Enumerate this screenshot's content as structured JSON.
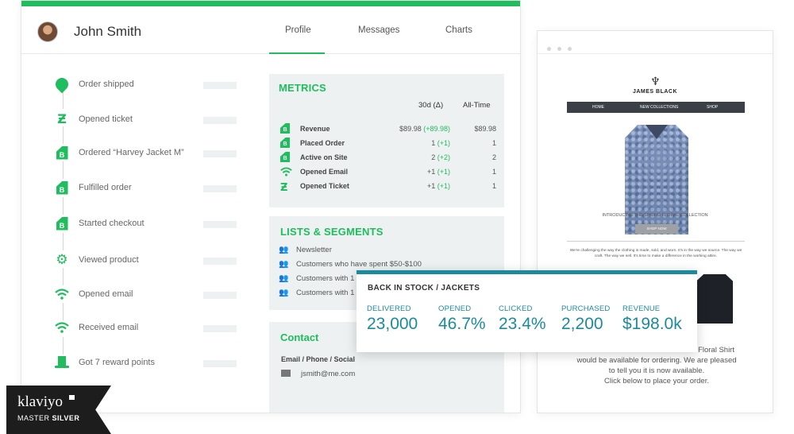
{
  "profile": {
    "name": "John Smith",
    "tabs": [
      {
        "label": "Profile"
      },
      {
        "label": "Messages"
      },
      {
        "label": "Charts"
      }
    ],
    "active_tab": "Profile"
  },
  "timeline": [
    {
      "icon": "location-pin-icon",
      "label": "Order shipped"
    },
    {
      "icon": "zendesk-icon",
      "label": "Opened ticket"
    },
    {
      "icon": "bigcommerce-icon",
      "label": "Ordered “Harvey Jacket M”"
    },
    {
      "icon": "bigcommerce-icon",
      "label": "Fulfilled order"
    },
    {
      "icon": "bigcommerce-icon",
      "label": "Started checkout"
    },
    {
      "icon": "gear-icon",
      "label": "Viewed product"
    },
    {
      "icon": "wifi-icon",
      "label": "Opened email"
    },
    {
      "icon": "wifi-icon",
      "label": "Received email"
    },
    {
      "icon": "top-hat-icon",
      "label": "Got 7 reward points"
    }
  ],
  "metrics": {
    "title": "METRICS",
    "col_30d": "30d (Δ)",
    "col_all": "All-Time",
    "rows": [
      {
        "icon": "bigcommerce-icon",
        "label": "Revenue",
        "value": "$89.98",
        "delta": "(+89.98)",
        "all": "$89.98"
      },
      {
        "icon": "bigcommerce-icon",
        "label": "Placed Order",
        "value": "1",
        "delta": "(+1)",
        "all": "1"
      },
      {
        "icon": "bigcommerce-icon",
        "label": "Active on Site",
        "value": "2",
        "delta": "(+2)",
        "all": "2"
      },
      {
        "icon": "wifi-icon",
        "label": "Opened Email",
        "value": "+1",
        "delta": "(+1)",
        "all": "1"
      },
      {
        "icon": "zendesk-icon",
        "label": "Opened Ticket",
        "value": "+1",
        "delta": "(+1)",
        "all": "1"
      }
    ]
  },
  "lists": {
    "title": "LISTS & SEGMENTS",
    "items": [
      "Newsletter",
      "Customers who have spent $50-$100",
      "Customers with 1",
      "Customers with 1"
    ]
  },
  "contact": {
    "title": "Contact",
    "subtitle": "Email / Phone / Social",
    "email": "jsmith@me.com"
  },
  "email_preview": {
    "brand": "JAMES BLACK",
    "nav": [
      "HOME",
      "NEW COLLECTIONS",
      "SHOP"
    ],
    "intro": "INTRODUCING THE SPRING FLORAL COLLECTION",
    "button": "SHOP NOW",
    "small_text": "We're challenging the way the clothing is made, sold, and worn. It's in the way we source. The way we craft. The way we sell. It's time to make a difference in the working attire.",
    "body_line1": "Floral Shirt",
    "body_line2": "would be available for ordering. We are pleased",
    "body_line3": "to tell you it is now available.",
    "body_line4": "Click below to place your order."
  },
  "campaign": {
    "title": "BACK IN STOCK / JACKETS",
    "stats": [
      {
        "label": "DELIVERED",
        "value": "23,000"
      },
      {
        "label": "OPENED",
        "value": "46.7%"
      },
      {
        "label": "CLICKED",
        "value": "23.4%"
      },
      {
        "label": "PURCHASED",
        "value": "2,200"
      },
      {
        "label": "REVENUE",
        "value": "$198.0k"
      }
    ]
  },
  "badge": {
    "logo": "klaviyo",
    "tier_prefix": "MASTER",
    "tier": "SILVER"
  },
  "colors": {
    "accent_green": "#1fbd5e",
    "teal": "#1b8a9e",
    "panel_bg": "#edf1f1"
  }
}
